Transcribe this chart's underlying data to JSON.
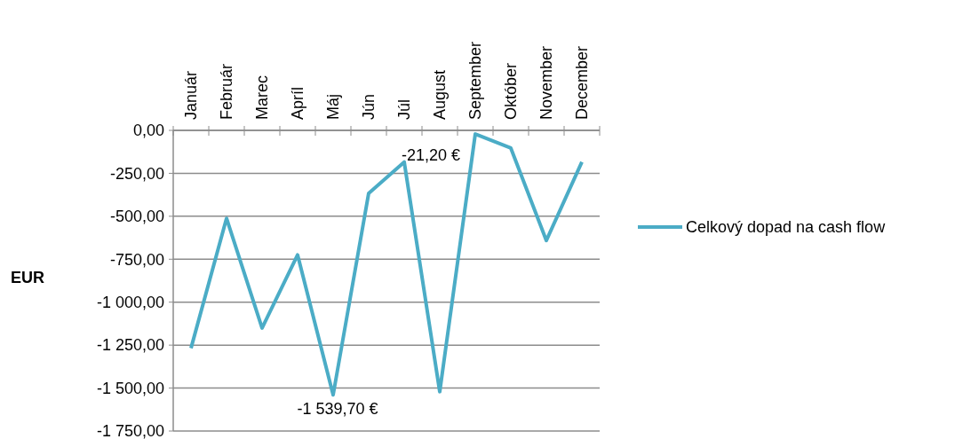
{
  "chart_data": {
    "type": "line",
    "ylabel": "EUR",
    "categories": [
      "Január",
      "Február",
      "Marec",
      "Apríl",
      "Máj",
      "Jún",
      "Júl",
      "August",
      "September",
      "Október",
      "November",
      "December"
    ],
    "series": [
      {
        "name": "Celkový dopad na cash flow",
        "color": "#4bacc6",
        "values": [
          -1268,
          -512,
          -1151,
          -725,
          -1539.7,
          -366,
          -184,
          -1521,
          -21.2,
          -103,
          -641,
          -184
        ]
      }
    ],
    "ylim": [
      -1750,
      0
    ],
    "yticks": [
      {
        "value": 0,
        "label": "0,00"
      },
      {
        "value": -250,
        "label": "-250,00"
      },
      {
        "value": -500,
        "label": "-500,00"
      },
      {
        "value": -750,
        "label": "-750,00"
      },
      {
        "value": -1000,
        "label": "-1 000,00"
      },
      {
        "value": -1250,
        "label": "-1 250,00"
      },
      {
        "value": -1500,
        "label": "-1 500,00"
      },
      {
        "value": -1750,
        "label": "-1 750,00"
      }
    ],
    "annotations": [
      {
        "text": "-1 539,70 €",
        "x": "Máj",
        "y": -1539.7
      },
      {
        "text": "-21,20 €",
        "x": "September",
        "y": -21.2
      }
    ],
    "grid": "y",
    "legend": "right",
    "line_style": "solid"
  }
}
